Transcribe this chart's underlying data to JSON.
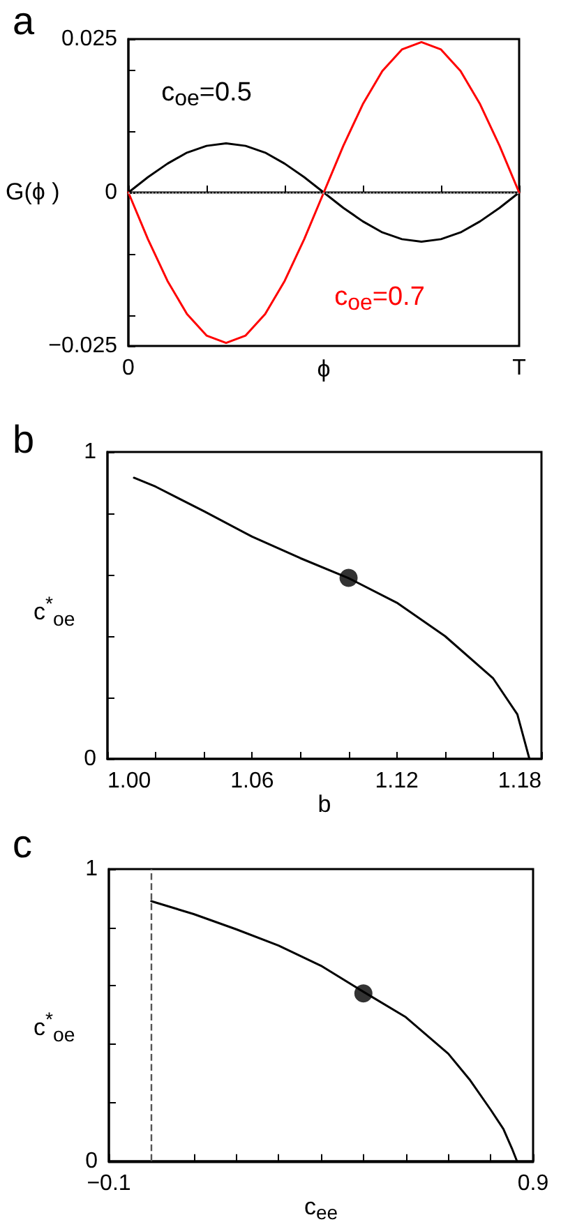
{
  "chart_data": [
    {
      "type": "line",
      "title": "a",
      "xlabel": "ϕ",
      "ylabel": "G(ϕ )",
      "marker": "none",
      "categories": [
        "0",
        null,
        null,
        null,
        null,
        null,
        null,
        null,
        null,
        null,
        null,
        null,
        null,
        null,
        null,
        null,
        null,
        null,
        null,
        null,
        "T"
      ],
      "ylim": [
        -0.025,
        0.025
      ],
      "yticks": [
        {
          "value": -0.025,
          "label": "−0.025"
        },
        {
          "value": -0.02,
          "label": null
        },
        {
          "value": -0.01,
          "label": null
        },
        0,
        {
          "value": 0.01,
          "label": null
        },
        {
          "value": 0.02,
          "label": null
        },
        0.025
      ],
      "ref_lines": [
        {
          "axis": "y",
          "value": 0,
          "color": "#aaaaaa",
          "line_style": "dotted"
        }
      ],
      "series": [
        {
          "name": "c$_{oe}$=0.5",
          "color": "#000000",
          "values": [
            0,
            0.0025,
            0.0047,
            0.0065,
            0.0076,
            0.008,
            0.0076,
            0.0065,
            0.0047,
            0.0025,
            0,
            -0.0025,
            -0.0047,
            -0.0065,
            -0.0076,
            -0.008,
            -0.0076,
            -0.0065,
            -0.0047,
            -0.0025,
            0
          ]
        },
        {
          "name": "c$_{oe}$=0.7",
          "color": "#ff0000",
          "values": [
            0,
            -0.0076,
            -0.0144,
            -0.0198,
            -0.0233,
            -0.0245,
            -0.0233,
            -0.0198,
            -0.0144,
            -0.0076,
            0,
            0.0076,
            0.0144,
            0.0198,
            0.0233,
            0.0245,
            0.0233,
            0.0198,
            0.0144,
            0.0076,
            0
          ]
        }
      ]
    },
    {
      "type": "line",
      "title": "b",
      "xlabel": "b",
      "ylabel": "c$^{*}$$_{oe}$",
      "xlim": [
        1,
        1.18
      ],
      "xticks": [
        {
          "value": 1,
          "label": "1.00"
        },
        {
          "value": 1.02,
          "label": null
        },
        {
          "value": 1.04,
          "label": null
        },
        1.06,
        {
          "value": 1.08,
          "label": null
        },
        {
          "value": 1.1,
          "label": null
        },
        1.12,
        {
          "value": 1.14,
          "label": null
        },
        {
          "value": 1.16,
          "label": null
        },
        1.18
      ],
      "ylim": [
        0,
        1
      ],
      "yticks": [
        0,
        {
          "value": 0.2,
          "label": null
        },
        {
          "value": 0.4,
          "label": null
        },
        {
          "value": 0.6,
          "label": null
        },
        {
          "value": 0.8,
          "label": null
        },
        1
      ],
      "series": [
        {
          "color": "#000000",
          "x": [
            1.011,
            1.02,
            1.04,
            1.06,
            1.08,
            1.1,
            1.12,
            1.14,
            1.16,
            1.17,
            1.173,
            1.175
          ],
          "values": [
            0.916,
            0.887,
            0.807,
            0.724,
            0.654,
            0.589,
            0.509,
            0.4,
            0.262,
            0.145,
            0.058,
            0
          ]
        },
        {
          "type": "scatter",
          "color": "#000000",
          "x": [
            1.1
          ],
          "values": [
            0.59
          ]
        }
      ]
    },
    {
      "type": "line",
      "title": "c",
      "xlabel": "c$_{ee}$",
      "ylabel": "c$^{*}$$_{oe}$",
      "xlim": [
        -0.1,
        0.9
      ],
      "xticks": [
        {
          "value": -0.1,
          "label": "−0.1"
        },
        {
          "value": 0,
          "label": null
        },
        {
          "value": 0.1,
          "label": null
        },
        {
          "value": 0.2,
          "label": null
        },
        {
          "value": 0.3,
          "label": null
        },
        {
          "value": 0.4,
          "label": null
        },
        {
          "value": 0.5,
          "label": null
        },
        {
          "value": 0.6,
          "label": null
        },
        {
          "value": 0.7,
          "label": null
        },
        {
          "value": 0.8,
          "label": null
        },
        0.9
      ],
      "ylim": [
        0,
        1
      ],
      "yticks": [
        0,
        {
          "value": 0.2,
          "label": null
        },
        {
          "value": 0.4,
          "label": null
        },
        {
          "value": 0.6,
          "label": null
        },
        {
          "value": 0.8,
          "label": null
        },
        1
      ],
      "ref_lines": [
        {
          "axis": "x",
          "value": 0,
          "color": "#555555",
          "line_style": "dashed"
        }
      ],
      "series": [
        {
          "color": "#000000",
          "x": [
            0,
            0.1,
            0.2,
            0.3,
            0.4,
            0.5,
            0.6,
            0.7,
            0.75,
            0.8,
            0.83,
            0.85,
            0.862
          ],
          "values": [
            0.89,
            0.846,
            0.794,
            0.738,
            0.669,
            0.58,
            0.493,
            0.368,
            0.28,
            0.176,
            0.11,
            0.044,
            0
          ]
        },
        {
          "type": "scatter",
          "color": "#000000",
          "x": [
            0.5
          ],
          "values": [
            0.574
          ]
        }
      ]
    }
  ]
}
